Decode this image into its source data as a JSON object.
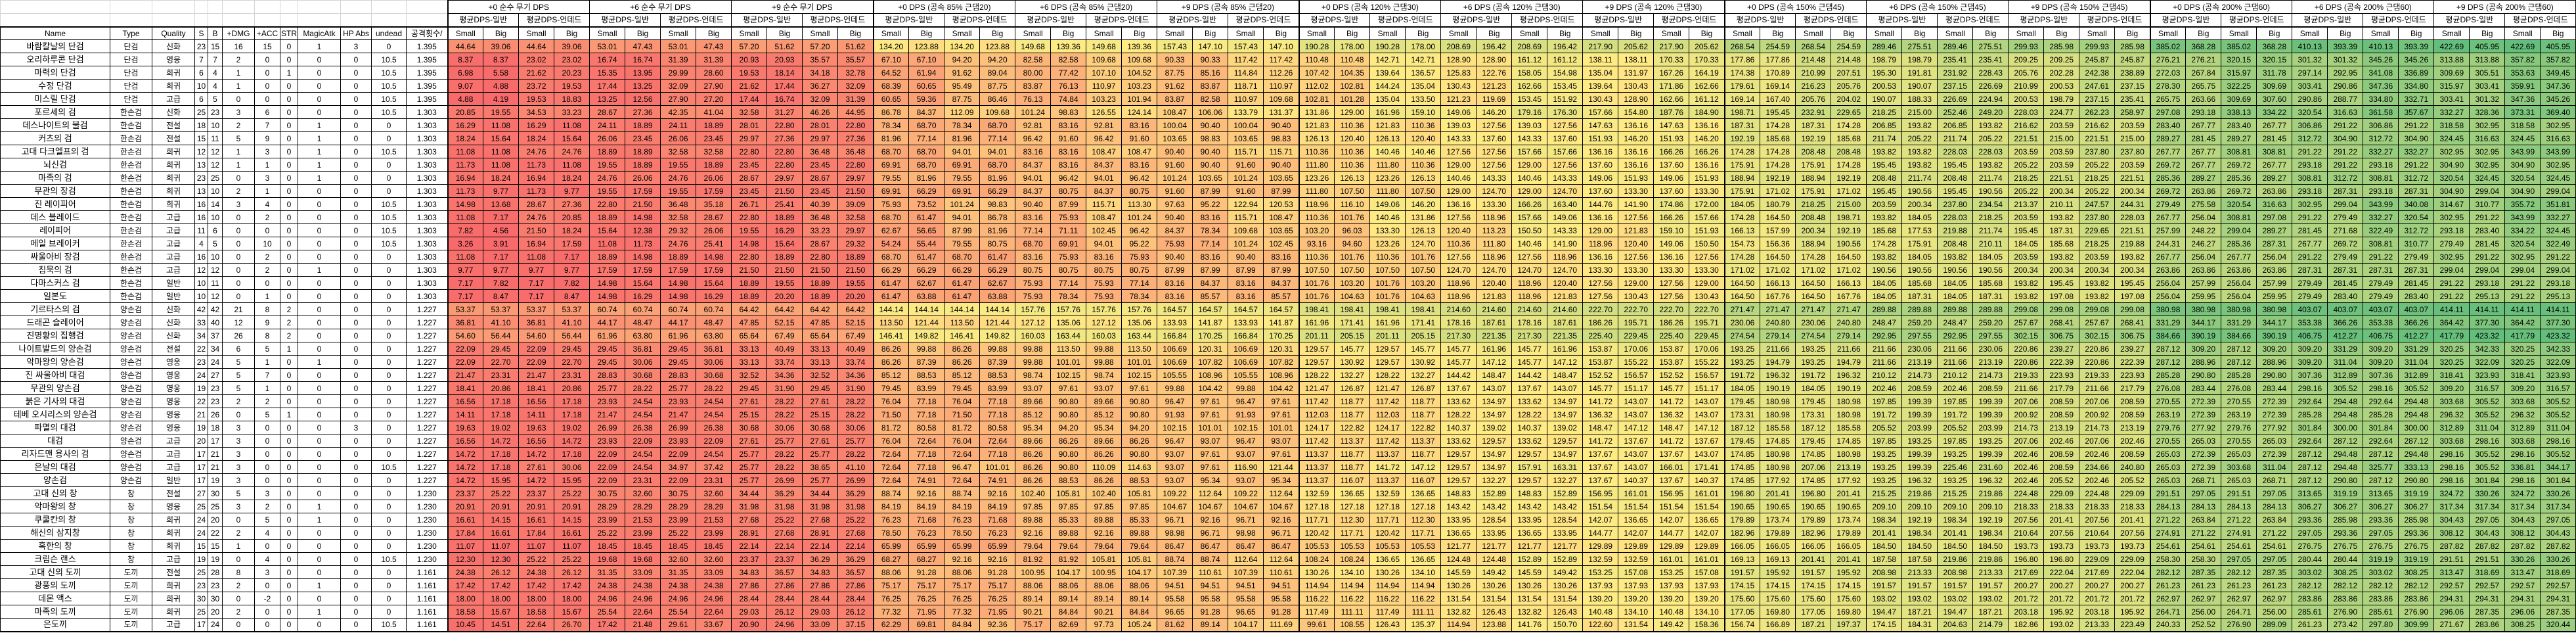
{
  "sheet": {
    "columns": [
      "Name",
      "Type",
      "Quality",
      "S",
      "B",
      "+DMG",
      "+ACC",
      "STR",
      "MagicAtk",
      "HP Abs",
      "undead",
      "공격횟수/"
    ],
    "dps_groups": [
      {
        "title": "+0 순수 무기 DPS",
        "enchant": 0,
        "haste_pct": 0,
        "melee_bonus": 0
      },
      {
        "title": "+6 순수 무기 DPS",
        "enchant": 6,
        "haste_pct": 0,
        "melee_bonus": 0
      },
      {
        "title": "+9 순수 무기 DPS",
        "enchant": 9,
        "haste_pct": 0,
        "melee_bonus": 0
      },
      {
        "title": "+0 DPS (공속 85% 근댐20)",
        "enchant": 0,
        "haste_pct": 85,
        "melee_bonus": 20
      },
      {
        "title": "+6 DPS (공속 85% 근댐20)",
        "enchant": 6,
        "haste_pct": 85,
        "melee_bonus": 20
      },
      {
        "title": "+9 DPS (공속 85% 근댐20)",
        "enchant": 9,
        "haste_pct": 85,
        "melee_bonus": 20
      },
      {
        "title": "+0 DPS (공속 120% 근댐30)",
        "enchant": 0,
        "haste_pct": 120,
        "melee_bonus": 30
      },
      {
        "title": "+6 DPS (공속 120% 근댐30)",
        "enchant": 6,
        "haste_pct": 120,
        "melee_bonus": 30
      },
      {
        "title": "+9 DPS (공속 120% 근댐30)",
        "enchant": 9,
        "haste_pct": 120,
        "melee_bonus": 30
      },
      {
        "title": "+0 DPS (공속 150% 근댐45)",
        "enchant": 0,
        "haste_pct": 150,
        "melee_bonus": 45
      },
      {
        "title": "+6 DPS (공속 150% 근댐45)",
        "enchant": 6,
        "haste_pct": 150,
        "melee_bonus": 45
      },
      {
        "title": "+9 DPS (공속 150% 근댐45)",
        "enchant": 9,
        "haste_pct": 150,
        "melee_bonus": 45
      },
      {
        "title": "+0 DPS (공속 200% 근댐60)",
        "enchant": 0,
        "haste_pct": 200,
        "melee_bonus": 60
      },
      {
        "title": "+6 DPS (공속 200% 근댐60)",
        "enchant": 6,
        "haste_pct": 200,
        "melee_bonus": 60
      },
      {
        "title": "+9 DPS (공속 200% 근댐60)",
        "enchant": 9,
        "haste_pct": 200,
        "melee_bonus": 60
      }
    ],
    "subgroups": [
      "평균DPS-일반",
      "평균DPS-언데드"
    ],
    "sizes": [
      "Small",
      "Big"
    ],
    "rows": [
      {
        "name": "바람칼날의 단검",
        "type": "단검",
        "quality": "신화",
        "s": "23",
        "b": "15",
        "dmg": "16",
        "acc": "15",
        "str": "0",
        "magic": "1",
        "hp_abs": "3",
        "undead": "0",
        "aps": "1.395",
        "base_dps": [
          44.64,
          39.06,
          44.64,
          39.06
        ]
      },
      {
        "name": "오리하루콘 단검",
        "type": "단검",
        "quality": "영웅",
        "s": "7",
        "b": "7",
        "dmg": "2",
        "acc": "0",
        "str": "0",
        "magic": "0",
        "hp_abs": "0",
        "undead": "10.5",
        "aps": "1.395",
        "base_dps": [
          8.37,
          8.37,
          23.02,
          23.02
        ]
      },
      {
        "name": "마력의 단검",
        "type": "단검",
        "quality": "희귀",
        "s": "6",
        "b": "4",
        "dmg": "1",
        "acc": "0",
        "str": "1",
        "magic": "0",
        "hp_abs": "0",
        "undead": "10.5",
        "aps": "1.395",
        "base_dps": [
          6.98,
          5.58,
          21.62,
          20.23
        ]
      },
      {
        "name": "수정 단검",
        "type": "단검",
        "quality": "희귀",
        "s": "10",
        "b": "4",
        "dmg": "1",
        "acc": "0",
        "str": "0",
        "magic": "0",
        "hp_abs": "0",
        "undead": "10.5",
        "aps": "1.395",
        "base_dps": [
          9.07,
          4.88,
          23.72,
          19.53
        ]
      },
      {
        "name": "미스릴 단검",
        "type": "단검",
        "quality": "고급",
        "s": "6",
        "b": "5",
        "dmg": "0",
        "acc": "0",
        "str": "0",
        "magic": "0",
        "hp_abs": "0",
        "undead": "10.5",
        "aps": "1.395",
        "base_dps": [
          4.88,
          4.19,
          19.53,
          18.83
        ]
      },
      {
        "name": "포르세의 검",
        "type": "한손검",
        "quality": "신화",
        "s": "25",
        "b": "23",
        "dmg": "3",
        "acc": "6",
        "str": "0",
        "magic": "0",
        "hp_abs": "0",
        "undead": "10.5",
        "aps": "1.303",
        "base_dps": [
          20.85,
          19.55,
          34.53,
          33.23
        ]
      },
      {
        "name": "데스나이트의 불검",
        "type": "한손검",
        "quality": "전설",
        "s": "18",
        "b": "10",
        "dmg": "2",
        "acc": "7",
        "str": "0",
        "magic": "1",
        "hp_abs": "0",
        "undead": "0",
        "aps": "1.303",
        "base_dps": [
          16.29,
          11.08,
          16.29,
          11.08
        ]
      },
      {
        "name": "커츠의 검",
        "type": "한손검",
        "quality": "전설",
        "s": "15",
        "b": "11",
        "dmg": "5",
        "acc": "9",
        "str": "0",
        "magic": "1",
        "hp_abs": "0",
        "undead": "0",
        "aps": "1.303",
        "base_dps": [
          18.24,
          15.64,
          18.24,
          15.64
        ]
      },
      {
        "name": "고대 다크엘프의 검",
        "type": "한손검",
        "quality": "희귀",
        "s": "12",
        "b": "12",
        "dmg": "1",
        "acc": "3",
        "str": "0",
        "magic": "1",
        "hp_abs": "0",
        "undead": "10.5",
        "aps": "1.303",
        "base_dps": [
          11.08,
          11.08,
          24.76,
          24.76
        ]
      },
      {
        "name": "뇌신검",
        "type": "한손검",
        "quality": "희귀",
        "s": "13",
        "b": "12",
        "dmg": "1",
        "acc": "1",
        "str": "0",
        "magic": "1",
        "hp_abs": "0",
        "undead": "0",
        "aps": "1.303",
        "base_dps": [
          11.73,
          11.08,
          11.73,
          11.08
        ]
      },
      {
        "name": "마족의 검",
        "type": "한손검",
        "quality": "희귀",
        "s": "23",
        "b": "25",
        "dmg": "0",
        "acc": "3",
        "str": "0",
        "magic": "1",
        "hp_abs": "0",
        "undead": "0",
        "aps": "1.303",
        "base_dps": [
          16.94,
          18.24,
          16.94,
          18.24
        ]
      },
      {
        "name": "무관의 장검",
        "type": "한손검",
        "quality": "희귀",
        "s": "13",
        "b": "10",
        "dmg": "2",
        "acc": "1",
        "str": "0",
        "magic": "0",
        "hp_abs": "0",
        "undead": "0",
        "aps": "1.303",
        "base_dps": [
          11.73,
          9.77,
          11.73,
          9.77
        ]
      },
      {
        "name": "진 레이피어",
        "type": "한손검",
        "quality": "희귀",
        "s": "16",
        "b": "14",
        "dmg": "3",
        "acc": "4",
        "str": "0",
        "magic": "0",
        "hp_abs": "0",
        "undead": "10.5",
        "aps": "1.303",
        "base_dps": [
          14.98,
          13.68,
          28.67,
          27.36
        ]
      },
      {
        "name": "데스 블레이드",
        "type": "한손검",
        "quality": "고급",
        "s": "16",
        "b": "10",
        "dmg": "0",
        "acc": "2",
        "str": "0",
        "magic": "0",
        "hp_abs": "0",
        "undead": "10.5",
        "aps": "1.303",
        "base_dps": [
          11.08,
          7.17,
          24.76,
          20.85
        ]
      },
      {
        "name": "레이피어",
        "type": "한손검",
        "quality": "고급",
        "s": "11",
        "b": "6",
        "dmg": "0",
        "acc": "0",
        "str": "0",
        "magic": "0",
        "hp_abs": "0",
        "undead": "10.5",
        "aps": "1.303",
        "base_dps": [
          7.82,
          4.56,
          21.5,
          18.24
        ]
      },
      {
        "name": "메일 브레이커",
        "type": "한손검",
        "quality": "고급",
        "s": "4",
        "b": "5",
        "dmg": "0",
        "acc": "10",
        "str": "0",
        "magic": "0",
        "hp_abs": "0",
        "undead": "10.5",
        "aps": "1.303",
        "base_dps": [
          3.26,
          3.91,
          16.94,
          17.59
        ]
      },
      {
        "name": "싸울아비 장검",
        "type": "한손검",
        "quality": "고급",
        "s": "16",
        "b": "10",
        "dmg": "0",
        "acc": "2",
        "str": "0",
        "magic": "0",
        "hp_abs": "0",
        "undead": "0",
        "aps": "1.303",
        "base_dps": [
          11.08,
          7.17,
          11.08,
          7.17
        ]
      },
      {
        "name": "침묵의 검",
        "type": "한손검",
        "quality": "고급",
        "s": "12",
        "b": "12",
        "dmg": "0",
        "acc": "2",
        "str": "0",
        "magic": "1",
        "hp_abs": "0",
        "undead": "0",
        "aps": "1.303",
        "base_dps": [
          9.77,
          9.77,
          9.77,
          9.77
        ]
      },
      {
        "name": "다마스커스 검",
        "type": "한손검",
        "quality": "일반",
        "s": "10",
        "b": "11",
        "dmg": "0",
        "acc": "0",
        "str": "0",
        "magic": "0",
        "hp_abs": "0",
        "undead": "0",
        "aps": "1.303",
        "base_dps": [
          7.17,
          7.82,
          7.17,
          7.82
        ]
      },
      {
        "name": "일본도",
        "type": "한손검",
        "quality": "일반",
        "s": "10",
        "b": "12",
        "dmg": "0",
        "acc": "1",
        "str": "0",
        "magic": "0",
        "hp_abs": "0",
        "undead": "0",
        "aps": "1.303",
        "base_dps": [
          7.17,
          8.47,
          7.17,
          8.47
        ]
      },
      {
        "name": "기르타스의 검",
        "type": "양손검",
        "quality": "신화",
        "s": "42",
        "b": "42",
        "dmg": "21",
        "acc": "8",
        "str": "2",
        "magic": "0",
        "hp_abs": "0",
        "undead": "0",
        "aps": "1.227",
        "base_dps": [
          53.37,
          53.37,
          53.37,
          53.37
        ]
      },
      {
        "name": "드래곤 슬레이어",
        "type": "양손검",
        "quality": "신화",
        "s": "33",
        "b": "40",
        "dmg": "12",
        "acc": "9",
        "str": "2",
        "magic": "0",
        "hp_abs": "0",
        "undead": "0",
        "aps": "1.227",
        "base_dps": [
          36.81,
          41.1,
          36.81,
          41.1
        ]
      },
      {
        "name": "진명황의 집행검",
        "type": "양손검",
        "quality": "신화",
        "s": "34",
        "b": "37",
        "dmg": "26",
        "acc": "8",
        "str": "2",
        "magic": "0",
        "hp_abs": "0",
        "undead": "0",
        "aps": "1.227",
        "base_dps": [
          54.6,
          56.44,
          54.6,
          56.44
        ]
      },
      {
        "name": "나이트발드의 양손검",
        "type": "양손검",
        "quality": "전설",
        "s": "22",
        "b": "34",
        "dmg": "6",
        "acc": "5",
        "str": "1",
        "magic": "0",
        "hp_abs": "0",
        "undead": "0",
        "aps": "1.227",
        "base_dps": [
          22.09,
          29.45,
          22.09,
          29.45
        ]
      },
      {
        "name": "악마왕의 양손검",
        "type": "양손검",
        "quality": "영웅",
        "s": "23",
        "b": "24",
        "dmg": "5",
        "acc": "1",
        "str": "0",
        "magic": "1",
        "hp_abs": "0",
        "undead": "0",
        "aps": "1.227",
        "base_dps": [
          22.09,
          22.7,
          22.09,
          22.7
        ]
      },
      {
        "name": "진 싸울아비 대검",
        "type": "양손검",
        "quality": "영웅",
        "s": "24",
        "b": "27",
        "dmg": "5",
        "acc": "7",
        "str": "0",
        "magic": "0",
        "hp_abs": "0",
        "undead": "0",
        "aps": "1.227",
        "base_dps": [
          21.47,
          23.31,
          21.47,
          23.31
        ]
      },
      {
        "name": "무관의 양손검",
        "type": "양손검",
        "quality": "영웅",
        "s": "19",
        "b": "23",
        "dmg": "5",
        "acc": "1",
        "str": "0",
        "magic": "0",
        "hp_abs": "0",
        "undead": "0",
        "aps": "1.227",
        "base_dps": [
          18.41,
          20.86,
          18.41,
          20.86
        ]
      },
      {
        "name": "붉은 기사의 대검",
        "type": "양손검",
        "quality": "영웅",
        "s": "22",
        "b": "23",
        "dmg": "2",
        "acc": "2",
        "str": "0",
        "magic": "0",
        "hp_abs": "0",
        "undead": "0",
        "aps": "1.227",
        "base_dps": [
          16.56,
          17.18,
          16.56,
          17.18
        ]
      },
      {
        "name": "테베 오시리스의 양손검",
        "type": "양손검",
        "quality": "영웅",
        "s": "21",
        "b": "26",
        "dmg": "0",
        "acc": "5",
        "str": "1",
        "magic": "0",
        "hp_abs": "0",
        "undead": "0",
        "aps": "1.227",
        "base_dps": [
          14.11,
          17.18,
          14.11,
          17.18
        ]
      },
      {
        "name": "파멸의 대검",
        "type": "양손검",
        "quality": "영웅",
        "s": "19",
        "b": "18",
        "dmg": "3",
        "acc": "0",
        "str": "0",
        "magic": "0",
        "hp_abs": "3",
        "undead": "0",
        "aps": "1.227",
        "base_dps": [
          19.63,
          19.02,
          19.63,
          19.02
        ]
      },
      {
        "name": "대검",
        "type": "양손검",
        "quality": "고급",
        "s": "20",
        "b": "17",
        "dmg": "3",
        "acc": "0",
        "str": "0",
        "magic": "0",
        "hp_abs": "0",
        "undead": "0",
        "aps": "1.227",
        "base_dps": [
          16.56,
          14.72,
          16.56,
          14.72
        ]
      },
      {
        "name": "리자드맨 용사의 검",
        "type": "양손검",
        "quality": "고급",
        "s": "17",
        "b": "21",
        "dmg": "3",
        "acc": "0",
        "str": "0",
        "magic": "0",
        "hp_abs": "0",
        "undead": "0",
        "aps": "1.227",
        "base_dps": [
          14.72,
          17.18,
          14.72,
          17.18
        ]
      },
      {
        "name": "은날의 대검",
        "type": "양손검",
        "quality": "고급",
        "s": "17",
        "b": "21",
        "dmg": "3",
        "acc": "0",
        "str": "0",
        "magic": "0",
        "hp_abs": "0",
        "undead": "10.5",
        "aps": "1.227",
        "base_dps": [
          14.72,
          17.18,
          27.61,
          30.06
        ]
      },
      {
        "name": "양손검",
        "type": "양손검",
        "quality": "일반",
        "s": "17",
        "b": "19",
        "dmg": "3",
        "acc": "0",
        "str": "0",
        "magic": "0",
        "hp_abs": "0",
        "undead": "0",
        "aps": "1.227",
        "base_dps": [
          14.72,
          15.95,
          14.72,
          15.95
        ]
      },
      {
        "name": "고대 신의 창",
        "type": "창",
        "quality": "전설",
        "s": "27",
        "b": "30",
        "dmg": "5",
        "acc": "3",
        "str": "0",
        "magic": "0",
        "hp_abs": "0",
        "undead": "0",
        "aps": "1.230",
        "base_dps": [
          23.37,
          25.22,
          23.37,
          25.22
        ]
      },
      {
        "name": "악마왕의 창",
        "type": "창",
        "quality": "영웅",
        "s": "25",
        "b": "25",
        "dmg": "3",
        "acc": "2",
        "str": "0",
        "magic": "1",
        "hp_abs": "0",
        "undead": "0",
        "aps": "1.230",
        "base_dps": [
          20.91,
          20.91,
          20.91,
          20.91
        ]
      },
      {
        "name": "쿠쿨칸의 창",
        "type": "창",
        "quality": "희귀",
        "s": "24",
        "b": "20",
        "dmg": "0",
        "acc": "5",
        "str": "0",
        "magic": "1",
        "hp_abs": "0",
        "undead": "0",
        "aps": "1.230",
        "base_dps": [
          16.61,
          14.15,
          16.61,
          14.15
        ]
      },
      {
        "name": "해신의 삼지창",
        "type": "창",
        "quality": "희귀",
        "s": "24",
        "b": "22",
        "dmg": "2",
        "acc": "4",
        "str": "0",
        "magic": "0",
        "hp_abs": "0",
        "undead": "0",
        "aps": "1.230",
        "base_dps": [
          17.84,
          16.61,
          17.84,
          16.61
        ]
      },
      {
        "name": "혹한의 창",
        "type": "창",
        "quality": "희귀",
        "s": "15",
        "b": "15",
        "dmg": "1",
        "acc": "0",
        "str": "0",
        "magic": "0",
        "hp_abs": "0",
        "undead": "0",
        "aps": "1.230",
        "base_dps": [
          11.07,
          11.07,
          11.07,
          11.07
        ]
      },
      {
        "name": "크림슨 랜스",
        "type": "창",
        "quality": "고급",
        "s": "19",
        "b": "19",
        "dmg": "0",
        "acc": "4",
        "str": "0",
        "magic": "0",
        "hp_abs": "0",
        "undead": "10.5",
        "aps": "1.230",
        "base_dps": [
          12.3,
          12.3,
          25.22,
          25.22
        ]
      },
      {
        "name": "고대 신의 도끼",
        "type": "도끼",
        "quality": "전설",
        "s": "25",
        "b": "28",
        "dmg": "8",
        "acc": "3",
        "str": "0",
        "magic": "0",
        "hp_abs": "0",
        "undead": "0",
        "aps": "1.161",
        "base_dps": [
          24.38,
          26.12,
          24.38,
          26.12
        ]
      },
      {
        "name": "광풍의 도끼",
        "type": "도끼",
        "quality": "희귀",
        "s": "23",
        "b": "23",
        "dmg": "2",
        "acc": "0",
        "str": "0",
        "magic": "1",
        "hp_abs": "0",
        "undead": "0",
        "aps": "1.161",
        "base_dps": [
          17.42,
          17.42,
          17.42,
          17.42
        ]
      },
      {
        "name": "데몬 액스",
        "type": "도끼",
        "quality": "희귀",
        "s": "30",
        "b": "30",
        "dmg": "0",
        "acc": "-2",
        "str": "0",
        "magic": "0",
        "hp_abs": "0",
        "undead": "0",
        "aps": "1.161",
        "base_dps": [
          18.0,
          18.0,
          18.0,
          18.0
        ]
      },
      {
        "name": "마족의 도끼",
        "type": "도끼",
        "quality": "희귀",
        "s": "25",
        "b": "20",
        "dmg": "2",
        "acc": "0",
        "str": "0",
        "magic": "1",
        "hp_abs": "0",
        "undead": "0",
        "aps": "1.161",
        "base_dps": [
          18.58,
          15.67,
          18.58,
          15.67
        ]
      },
      {
        "name": "은도끼",
        "type": "도끼",
        "quality": "고급",
        "s": "17",
        "b": "24",
        "dmg": "0",
        "acc": "0",
        "str": "0",
        "magic": "0",
        "hp_abs": "0",
        "undead": "10.5",
        "aps": "1.161",
        "base_dps": [
          10.45,
          14.51,
          22.64,
          26.7
        ]
      }
    ]
  },
  "colors": {
    "scale_min": "#F8696B",
    "scale_mid": "#FFEB84",
    "scale_max": "#63BE7B",
    "gridline": "#000000",
    "header_gridline": "#D4D4D4"
  }
}
